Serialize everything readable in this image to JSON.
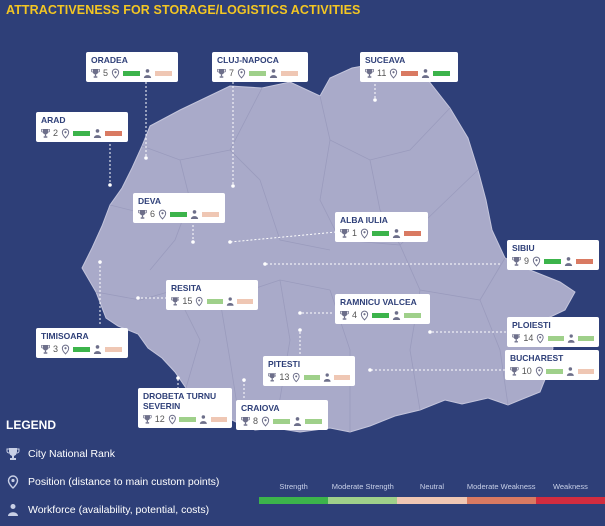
{
  "title": "ATTRACTIVENESS FOR STORAGE/LOGISTICS ACTIVITIES",
  "colors": {
    "background": "#2e3f78",
    "title": "#f3c623",
    "map_fill": "#a9aac9",
    "strength": "#3cb44b",
    "moderate_strength": "#9fd08a",
    "neutral": "#efc7b4",
    "moderate_weakness": "#d97a62",
    "weakness": "#d22c3f"
  },
  "cities": [
    {
      "name": "ORADEA",
      "rank": "5",
      "position": "strength",
      "workforce": "neutral"
    },
    {
      "name": "CLUJ-NAPOCA",
      "rank": "7",
      "position": "moderate_strength",
      "workforce": "neutral"
    },
    {
      "name": "SUCEAVA",
      "rank": "11",
      "position": "moderate_weakness",
      "workforce": "strength"
    },
    {
      "name": "ARAD",
      "rank": "2",
      "position": "strength",
      "workforce": "moderate_weakness"
    },
    {
      "name": "DEVA",
      "rank": "6",
      "position": "strength",
      "workforce": "neutral"
    },
    {
      "name": "ALBA IULIA",
      "rank": "1",
      "position": "strength",
      "workforce": "moderate_weakness"
    },
    {
      "name": "SIBIU",
      "rank": "9",
      "position": "strength",
      "workforce": "moderate_weakness"
    },
    {
      "name": "RESITA",
      "rank": "15",
      "position": "moderate_strength",
      "workforce": "neutral"
    },
    {
      "name": "RAMNICU VALCEA",
      "rank": "4",
      "position": "strength",
      "workforce": "moderate_strength"
    },
    {
      "name": "TIMISOARA",
      "rank": "3",
      "position": "strength",
      "workforce": "neutral"
    },
    {
      "name": "PLOIESTI",
      "rank": "14",
      "position": "moderate_strength",
      "workforce": "moderate_strength"
    },
    {
      "name": "PITESTI",
      "rank": "13",
      "position": "moderate_strength",
      "workforce": "neutral"
    },
    {
      "name": "BUCHAREST",
      "rank": "10",
      "position": "moderate_strength",
      "workforce": "neutral"
    },
    {
      "name": "DROBETA TURNU SEVERIN",
      "rank": "12",
      "position": "moderate_strength",
      "workforce": "neutral"
    },
    {
      "name": "CRAIOVA",
      "rank": "8",
      "position": "moderate_strength",
      "workforce": "moderate_strength"
    }
  ],
  "legend": {
    "title": "LEGEND",
    "items": [
      {
        "icon": "trophy-icon",
        "label": "City National Rank"
      },
      {
        "icon": "location-pin-icon",
        "label": "Position (distance to main custom points)"
      },
      {
        "icon": "person-icon",
        "label": "Workforce (availability, potential, costs)"
      }
    ],
    "scale": [
      "Strength",
      "Moderate Strength",
      "Neutral",
      "Moderate Weakness",
      "Weakness"
    ]
  }
}
